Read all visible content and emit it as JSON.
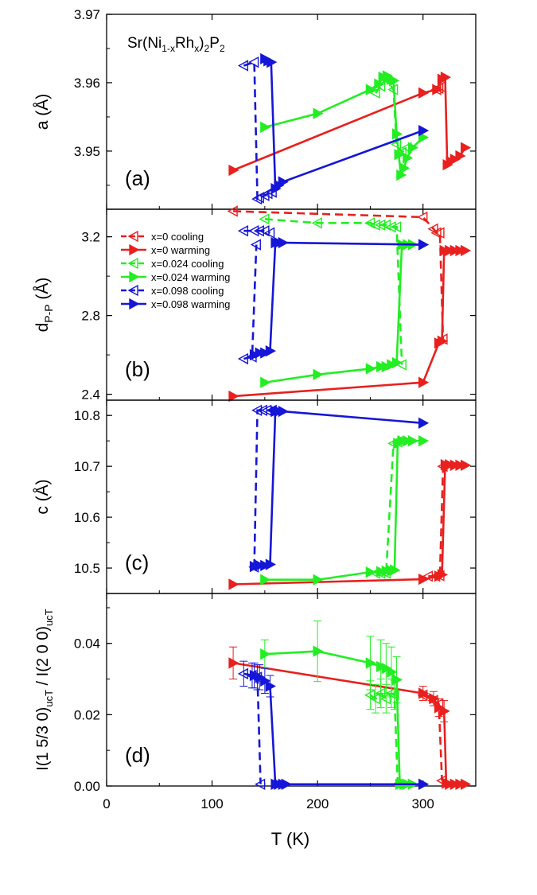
{
  "figure_title": "Sr(Ni1-xRh x)2P2",
  "title_parts": {
    "base": "Sr(Ni",
    "sub1": "1-x",
    "mid": "Rh",
    "sub2": "x",
    "close": ")",
    "sub3": "2",
    "p": "P",
    "sub4": "2"
  },
  "colors": {
    "x0": "#e8201e",
    "x024": "#22ee22",
    "x098": "#1616d8"
  },
  "legend": [
    {
      "label": "x=0 cooling",
      "series": "x0",
      "mode": "cooling"
    },
    {
      "label": "x=0 warming",
      "series": "x0",
      "mode": "warming"
    },
    {
      "label": "x=0.024 cooling",
      "series": "x024",
      "mode": "cooling"
    },
    {
      "label": "x=0.024 warming",
      "series": "x024",
      "mode": "warming"
    },
    {
      "label": "x=0.098 cooling",
      "series": "x098",
      "mode": "cooling"
    },
    {
      "label": "x=0.098 warming",
      "series": "x098",
      "mode": "warming"
    }
  ],
  "chart_data": {
    "type": "line",
    "xlabel": "T (K)",
    "xlim": [
      0,
      350
    ],
    "xticks": [
      0,
      100,
      200,
      300
    ],
    "panels": [
      {
        "id": "a",
        "label": "(a)",
        "ylabel": "a (Å)",
        "ylim": [
          3.9415,
          3.97
        ],
        "yticks": [
          3.95,
          3.96,
          3.97
        ],
        "ytick_labels": [
          "3.95",
          "3.96",
          "3.97"
        ],
        "series": [
          {
            "name": "x=0 warming",
            "color": "x0",
            "mode": "warming",
            "x": [
              120,
              300,
              313,
              318,
              321,
              323,
              326,
              330,
              335,
              340
            ],
            "y": [
              3.9472,
              3.9585,
              3.959,
              3.9605,
              3.9608,
              3.948,
              3.9485,
              3.9488,
              3.9493,
              3.9505
            ]
          },
          {
            "name": "x=0 cooling",
            "color": "x0",
            "mode": "cooling",
            "x": [
              313,
              315,
              317
            ],
            "y": [
              3.959,
              3.9592,
              3.9594
            ]
          },
          {
            "name": "x=0.024 warming",
            "color": "x024",
            "mode": "warming",
            "x": [
              150,
              200,
              250,
              258,
              262,
              266,
              270,
              272,
              275,
              277,
              279,
              282,
              285,
              290,
              300
            ],
            "y": [
              3.9535,
              3.9555,
              3.959,
              3.9598,
              3.9608,
              3.961,
              3.9605,
              3.9603,
              3.9525,
              3.9495,
              3.9465,
              3.9475,
              3.949,
              3.9505,
              3.952
            ]
          },
          {
            "name": "x=0.024 cooling",
            "color": "x024",
            "mode": "cooling",
            "x": [
              255,
              260,
              265,
              272,
              275,
              280,
              285
            ],
            "y": [
              3.9585,
              3.9595,
              3.9605,
              3.959,
              3.951,
              3.9498,
              3.9505
            ]
          },
          {
            "name": "x=0.098 warming",
            "color": "x098",
            "mode": "warming",
            "x": [
              150,
              153,
              156,
              160,
              163,
              167,
              300
            ],
            "y": [
              3.9635,
              3.9632,
              3.963,
              3.9445,
              3.945,
              3.9455,
              3.953
            ]
          },
          {
            "name": "x=0.098 cooling",
            "color": "x098",
            "mode": "cooling",
            "x": [
              130,
              140,
              143,
              145,
              150,
              153,
              157
            ],
            "y": [
              3.9625,
              3.963,
              3.943,
              3.9432,
              3.9435,
              3.9438,
              3.944
            ]
          }
        ]
      },
      {
        "id": "b",
        "label": "(b)",
        "ylabel": "dP-P (Å)",
        "ylabel_main": "d",
        "ylabel_sub": "P-P",
        "ylabel_tail": " (Å)",
        "ylim": [
          2.37,
          3.34
        ],
        "yticks": [
          2.4,
          2.8,
          3.2
        ],
        "ytick_labels": [
          "2.4",
          "2.8",
          "3.2"
        ],
        "series": [
          {
            "name": "x=0 warming",
            "color": "x0",
            "mode": "warming",
            "x": [
              120,
              300,
              315,
              318,
              320,
              325,
              330,
              335,
              340
            ],
            "y": [
              2.39,
              2.46,
              2.66,
              2.67,
              3.13,
              3.13,
              3.13,
              3.13,
              3.13
            ]
          },
          {
            "name": "x=0 cooling",
            "color": "x0",
            "mode": "cooling",
            "x": [
              120,
              300,
              310,
              313,
              316,
              319
            ],
            "y": [
              3.33,
              3.3,
              3.24,
              3.22,
              3.22,
              2.68
            ]
          },
          {
            "name": "x=0.024 warming",
            "color": "x024",
            "mode": "warming",
            "x": [
              150,
              200,
              250,
              260,
              265,
              270,
              275,
              280,
              285,
              290,
              300
            ],
            "y": [
              2.46,
              2.5,
              2.53,
              2.54,
              2.54,
              2.55,
              2.56,
              3.16,
              3.16,
              3.16,
              3.16
            ]
          },
          {
            "name": "x=0.024 cooling",
            "color": "x024",
            "mode": "cooling",
            "x": [
              150,
              200,
              250,
              255,
              260,
              265,
              270,
              275,
              280
            ],
            "y": [
              3.29,
              3.27,
              3.27,
              3.26,
              3.26,
              3.26,
              3.25,
              3.25,
              2.55
            ]
          },
          {
            "name": "x=0.098 warming",
            "color": "x098",
            "mode": "warming",
            "x": [
              140,
              145,
              150,
              155,
              160,
              163,
              167,
              300
            ],
            "y": [
              2.6,
              2.61,
              2.61,
              2.62,
              3.17,
              3.17,
              3.17,
              3.16
            ]
          },
          {
            "name": "x=0.098 cooling",
            "color": "x098",
            "mode": "cooling",
            "x": [
              130,
              140,
              145,
              150,
              155
            ],
            "y": [
              3.23,
              3.23,
              3.23,
              3.23,
              3.22
            ]
          },
          {
            "name": "x=0.098 cooling",
            "color": "x098",
            "mode": "cooling",
            "x": [
              130,
              138,
              142
            ],
            "y": [
              2.58,
              2.59,
              3.16
            ]
          }
        ]
      },
      {
        "id": "c",
        "label": "(c)",
        "ylabel": "c (Å)",
        "ylim": [
          10.45,
          10.83
        ],
        "yticks": [
          10.5,
          10.6,
          10.7,
          10.8
        ],
        "ytick_labels": [
          "10.5",
          "10.6",
          "10.7",
          "10.8"
        ],
        "series": [
          {
            "name": "x=0 warming",
            "color": "x0",
            "mode": "warming",
            "x": [
              120,
              300,
              315,
              318,
              321,
              325,
              330,
              335,
              340
            ],
            "y": [
              10.468,
              10.478,
              10.484,
              10.487,
              10.703,
              10.703,
              10.702,
              10.702,
              10.702
            ]
          },
          {
            "name": "x=0 cooling",
            "color": "x0",
            "mode": "cooling",
            "x": [
              305,
              312,
              316,
              319
            ],
            "y": [
              10.484,
              10.484,
              10.485,
              10.7
            ]
          },
          {
            "name": "x=0.024 warming",
            "color": "x024",
            "mode": "warming",
            "x": [
              150,
              200,
              250,
              260,
              265,
              270,
              273,
              276,
              280,
              285,
              290,
              300
            ],
            "y": [
              10.477,
              10.477,
              10.492,
              10.493,
              10.494,
              10.495,
              10.496,
              10.745,
              10.75,
              10.75,
              10.75,
              10.75
            ]
          },
          {
            "name": "x=0.024 cooling",
            "color": "x024",
            "mode": "cooling",
            "x": [
              255,
              260,
              265,
              272,
              276
            ],
            "y": [
              10.49,
              10.49,
              10.49,
              10.745,
              10.748
            ]
          },
          {
            "name": "x=0.098 warming",
            "color": "x098",
            "mode": "warming",
            "x": [
              140,
              145,
              150,
              155,
              160,
              163,
              167,
              300
            ],
            "y": [
              10.503,
              10.505,
              10.505,
              10.507,
              10.808,
              10.808,
              10.808,
              10.785
            ]
          },
          {
            "name": "x=0.098 cooling",
            "color": "x098",
            "mode": "cooling",
            "x": [
              140,
              143,
              148,
              152,
              157
            ],
            "y": [
              10.502,
              10.81,
              10.81,
              10.81,
              10.81
            ]
          }
        ]
      },
      {
        "id": "d",
        "label": "(d)",
        "ylabel": "I(1 5/3 0)ucT / I(2 0 0)ucT",
        "ylim": [
          0,
          0.054
        ],
        "yticks": [
          0,
          0.02,
          0.04
        ],
        "ytick_labels": [
          "0.00",
          "0.02",
          "0.04"
        ],
        "series": [
          {
            "name": "x=0 warming",
            "color": "x0",
            "mode": "warming",
            "x": [
              120,
              300,
              310,
              315,
              320,
              322,
              325,
              330,
              335,
              340
            ],
            "y": [
              0.0345,
              0.026,
              0.0245,
              0.022,
              0.021,
              0.0008,
              0.0005,
              0.0005,
              0.0005,
              0.0005
            ],
            "yerr": [
              0.0045,
              0.002,
              0.002,
              0.0025,
              0.003,
              0.0005,
              0.0005,
              0.0005,
              0.0005,
              0.0005
            ]
          },
          {
            "name": "x=0 cooling",
            "color": "x0",
            "mode": "cooling",
            "x": [
              300,
              310,
              315,
              318
            ],
            "y": [
              0.0255,
              0.024,
              0.023,
              0.0015
            ]
          },
          {
            "name": "x=0.024 warming",
            "color": "x024",
            "mode": "warming",
            "x": [
              150,
              200,
              250,
              260,
              265,
              270,
              275,
              278,
              282,
              285,
              290,
              300
            ],
            "y": [
              0.037,
              0.0378,
              0.0345,
              0.0335,
              0.033,
              0.032,
              0.0298,
              0.0005,
              0.0005,
              0.0005,
              0.0005,
              0.0005
            ],
            "yerr": [
              0.004,
              0.0085,
              0.0075,
              0.0075,
              0.007,
              0.007,
              0.0065,
              0.0005,
              0.0005,
              0.0005,
              0.0005,
              0.0005
            ]
          },
          {
            "name": "x=0.024 cooling",
            "color": "x024",
            "mode": "cooling",
            "x": [
              250,
              255,
              260,
              265,
              270,
              273,
              276
            ],
            "y": [
              0.0255,
              0.0245,
              0.026,
              0.0245,
              0.026,
              0.0255,
              0.0005
            ],
            "yerr": [
              0.004,
              0.004,
              0.004,
              0.004,
              0.004,
              0.004,
              0.0005
            ]
          },
          {
            "name": "x=0.098 warming",
            "color": "x098",
            "mode": "warming",
            "x": [
              140,
              145,
              150,
              155,
              160,
              163,
              167,
              170,
              300
            ],
            "y": [
              0.031,
              0.0305,
              0.0295,
              0.028,
              0.0005,
              0.0005,
              0.0005,
              0.0005,
              0.0005
            ],
            "yerr": [
              0.0035,
              0.0035,
              0.0035,
              0.003,
              0.0005,
              0.0005,
              0.0005,
              0.0005,
              0.0005
            ]
          },
          {
            "name": "x=0.098 cooling",
            "color": "x098",
            "mode": "cooling",
            "x": [
              130,
              138,
              143,
              146
            ],
            "y": [
              0.0315,
              0.031,
              0.0305,
              0.0005
            ],
            "yerr": [
              0.0035,
              0.0035,
              0.0035,
              0.0005
            ]
          }
        ]
      }
    ],
    "legend_location": "panel b, top-left"
  }
}
